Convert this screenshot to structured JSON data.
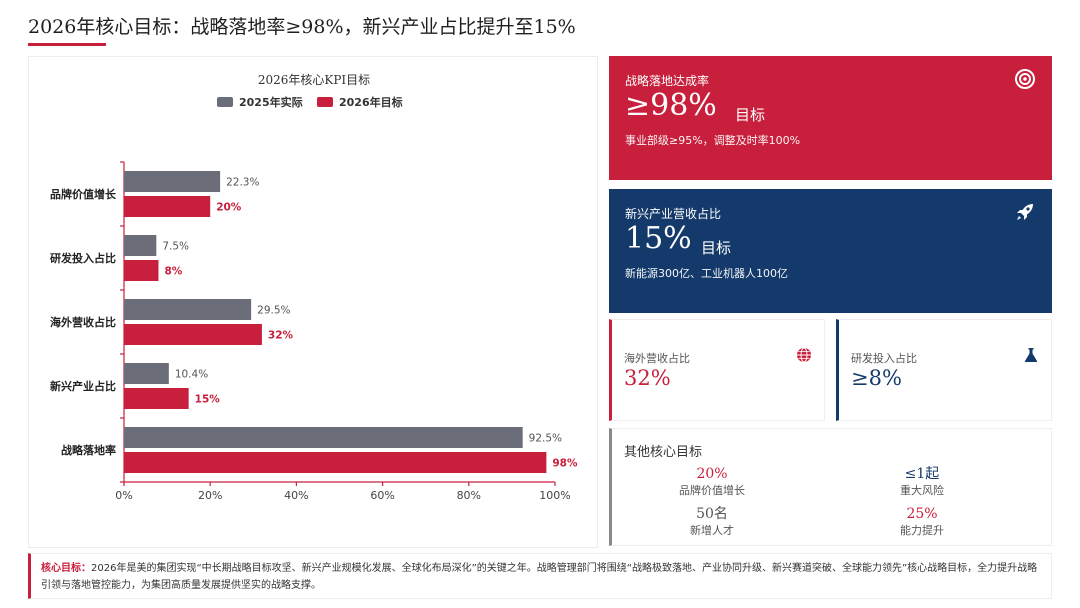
{
  "header": {
    "title": "2026年核心目标：战略落地率≥98%，新兴产业占比提升至15%"
  },
  "chart_data": {
    "type": "bar",
    "orientation": "horizontal",
    "title": "2026年核心KPI目标",
    "categories": [
      "品牌价值增长",
      "研发投入占比",
      "海外营收占比",
      "新兴产业占比",
      "战略落地率"
    ],
    "series": [
      {
        "name": "2025年实际",
        "color": "#6b6d78",
        "values": [
          22.3,
          7.5,
          29.5,
          10.4,
          92.5
        ],
        "labels": [
          "22.3%",
          "7.5%",
          "29.5%",
          "10.4%",
          "92.5%"
        ]
      },
      {
        "name": "2026年目标",
        "color": "#c8203c",
        "values": [
          20,
          8,
          32,
          15,
          98
        ],
        "labels": [
          "20%",
          "8%",
          "32%",
          "15%",
          "98%"
        ]
      }
    ],
    "xlim": [
      0,
      100
    ],
    "xticks": [
      "0%",
      "20%",
      "40%",
      "60%",
      "80%",
      "100%"
    ],
    "legend_position": "top",
    "grid": false
  },
  "cards": {
    "strategy": {
      "label": "战略落地达成率",
      "value": "≥98%",
      "unit": "目标",
      "sub": "事业部级≥95%，调整及时率100%",
      "icon": "target-icon"
    },
    "emerging": {
      "label": "新兴产业营收占比",
      "value": "15%",
      "unit": "目标",
      "sub": "新能源300亿、工业机器人100亿",
      "icon": "rocket-icon"
    },
    "overseas": {
      "label": "海外营收占比",
      "value": "32%",
      "icon": "globe-icon"
    },
    "rnd": {
      "label": "研发投入占比",
      "value": "≥8%",
      "icon": "flask-icon"
    }
  },
  "others": {
    "title": "其他核心目标",
    "items": [
      {
        "value": "20%",
        "label": "品牌价值增长"
      },
      {
        "value": "≤1起",
        "label": "重大风险"
      },
      {
        "value": "50名",
        "label": "新增人才"
      },
      {
        "value": "25%",
        "label": "能力提升"
      }
    ]
  },
  "footer": {
    "label": "核心目标：",
    "text": "2026年是美的集团实现“中长期战略目标攻坚、新兴产业规模化发展、全球化布局深化”的关键之年。战略管理部门将围绕“战略极致落地、产业协同升级、新兴赛道突破、全球能力领先”核心战略目标，全力提升战略引领与落地管控能力，为集团高质量发展提供坚实的战略支撑。"
  },
  "colors": {
    "accent_red": "#c8203c",
    "accent_blue": "#14396b",
    "bar_gray": "#6b6d78"
  }
}
